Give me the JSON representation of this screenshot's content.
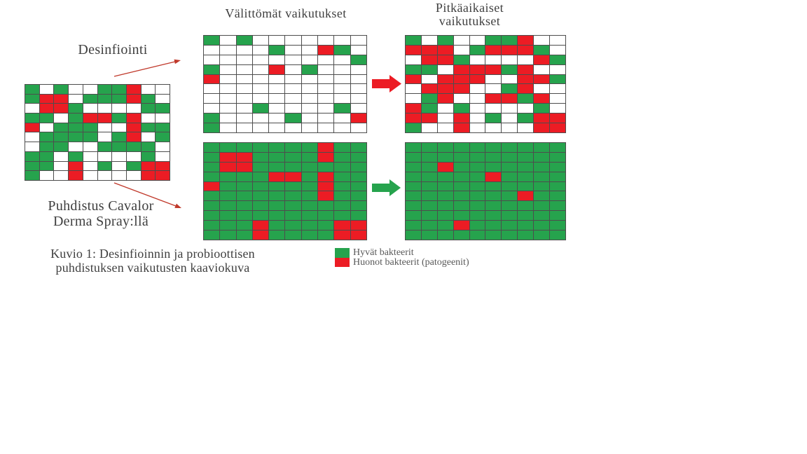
{
  "figure": {
    "headings": {
      "immediate": "Välittömät vaikutukset",
      "longterm_line1": "Pitkäaikaiset",
      "longterm_line2": "vaikutukset"
    },
    "labels": {
      "disinfection": "Desinfiointi",
      "probiotic_line1": "Puhdistus Cavalor",
      "probiotic_line2": "Derma Spray:llä"
    },
    "caption_line1": "Kuvio 1: Desinfioinnin ja probioottisen",
    "caption_line2": "puhdistuksen vaikutusten kaaviokuva",
    "legend": {
      "good_label": "Hyvät bakteerit",
      "bad_label": "Huonot bakteerit (patogeenit)"
    }
  },
  "colors": {
    "good": "#26A34D",
    "bad": "#EC1C24",
    "empty": "#FFFFFF",
    "grid_line": "#4D4D4D",
    "thin_arrow": "#C0392B",
    "text": "#3F3F3F",
    "legend_text": "#595959"
  },
  "cell_legend": {
    "G": "good bacteria (green)",
    "R": "bad bacteria / pathogen (red)",
    "W": "empty (white)"
  },
  "grids": {
    "initial": {
      "rows": [
        "GWGWWGGRWW",
        "GRRWGGGRGW",
        "WRRGWWWWGG",
        "GGWGRRGRWW",
        "RWGGGWWRGG",
        "WGGGGWGRWG",
        "WGGWWGGGGW",
        "GGWGWWWWGW",
        "GGWRWGWGRR",
        "GWWRWWWWRR"
      ]
    },
    "immediate": {
      "rows": [
        "GWGWWWWWWW",
        "WWWWGWWRGW",
        "WWWWWWWWWG",
        "GWWWRWGWWW",
        "RWWWWWWWWW",
        "WWWWWWWWWW",
        "WWWWWWWWWW",
        "WWWGWWWWGW",
        "GWWWWGWWWR",
        "GWWWWWWWWW"
      ]
    },
    "longterm": {
      "rows": [
        "GWGWWGGRWW",
        "RRRWGRRRGW",
        "WRRGWWWWRG",
        "GGWRRRGRWW",
        "RWRRRWWRRG",
        "WRRRWWGRWW",
        "WGRWWRRGRW",
        "RGWGWWWWGW",
        "RRWRWGWGRR",
        "GWWRWWWWRR"
      ]
    },
    "probiotic": {
      "rows": [
        "GGGGGGGRGG",
        "GRRGGGGRGG",
        "GRRGGGGGGG",
        "GGGGRRGRGG",
        "RGGGGGGRGG",
        "GGGGGGGRGG",
        "GGGGGGGGGG",
        "GGGGGGGGGG",
        "GGGRGGGGRR",
        "GGGRGGGGRR"
      ]
    },
    "probiotic_result": {
      "rows": [
        "GGGGGGGGGG",
        "GGGGGGGGGG",
        "GGRGGGGGGG",
        "GGGGGRGGGG",
        "GGGGGGGGGG",
        "GGGGGGGRGG",
        "GGGGGGGGGG",
        "GGGGGGGGGG",
        "GGGRGGGGGG",
        "GGGGGGGGGG"
      ]
    }
  }
}
